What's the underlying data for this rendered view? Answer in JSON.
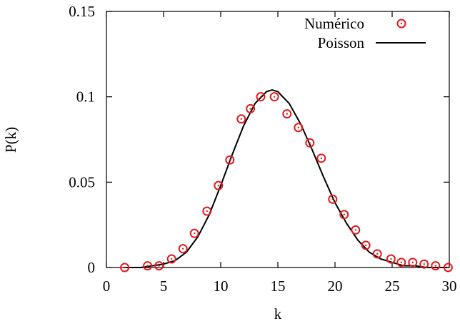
{
  "chart_data": {
    "type": "scatter",
    "xlabel": "k",
    "ylabel": "P(k)",
    "xlim": [
      0,
      30
    ],
    "ylim": [
      0,
      0.15
    ],
    "xticks": [
      0,
      5,
      10,
      15,
      20,
      25,
      30
    ],
    "xtick_labels": [
      "0",
      "5",
      "10",
      "15",
      "20",
      "25",
      "30"
    ],
    "yticks": [
      0,
      0.05,
      0.1,
      0.15
    ],
    "ytick_labels": [
      "0",
      "0.05",
      "0.1",
      "0.15"
    ],
    "grid": false,
    "legend_position": "top-right",
    "series": [
      {
        "name": "Numérico",
        "style": "points",
        "marker": "circle-dot",
        "color": "#e31a1c",
        "x": [
          1.6,
          3.6,
          4.6,
          5.7,
          6.7,
          7.7,
          8.8,
          9.8,
          10.8,
          11.8,
          12.6,
          13.5,
          14.7,
          15.8,
          16.8,
          17.8,
          18.8,
          19.8,
          20.8,
          21.8,
          22.7,
          23.7,
          24.9,
          25.8,
          26.8,
          27.8,
          28.8,
          29.9
        ],
        "y": [
          0.0,
          0.001,
          0.001,
          0.005,
          0.011,
          0.02,
          0.033,
          0.048,
          0.063,
          0.087,
          0.093,
          0.1,
          0.1,
          0.09,
          0.082,
          0.073,
          0.064,
          0.04,
          0.031,
          0.022,
          0.013,
          0.008,
          0.005,
          0.003,
          0.003,
          0.002,
          0.001,
          0.0
        ]
      },
      {
        "name": "Poisson",
        "style": "line",
        "color": "#000000",
        "x": [
          1.5,
          3,
          4,
          5,
          6,
          7,
          8,
          9,
          10,
          11,
          12,
          13,
          14,
          14.5,
          15,
          16,
          17,
          18,
          19,
          20,
          21,
          22,
          23,
          24,
          25,
          26,
          27,
          28,
          29,
          30
        ],
        "y": [
          0.0,
          0.0,
          0.001,
          0.002,
          0.004,
          0.009,
          0.018,
          0.031,
          0.048,
          0.066,
          0.083,
          0.096,
          0.103,
          0.104,
          0.103,
          0.096,
          0.084,
          0.069,
          0.053,
          0.038,
          0.026,
          0.016,
          0.009,
          0.005,
          0.003,
          0.001,
          0.001,
          0.0,
          0.0,
          0.0
        ]
      }
    ]
  }
}
